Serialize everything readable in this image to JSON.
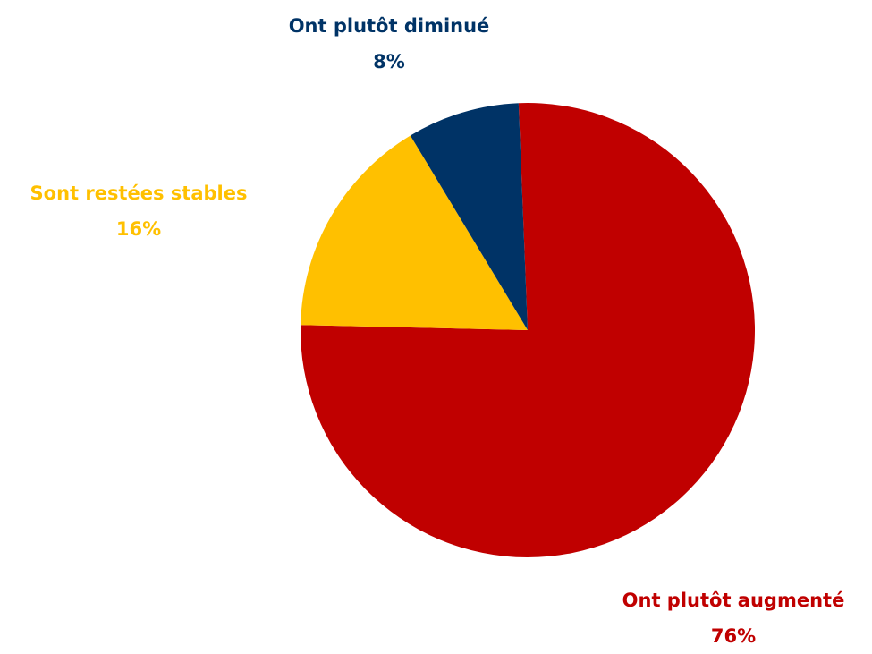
{
  "chart_data": {
    "type": "pie",
    "categories": [
      "Ont plutôt augmenté",
      "Sont restées stables",
      "Ont plutôt diminué"
    ],
    "values": [
      76,
      16,
      8
    ],
    "value_labels": [
      "76%",
      "16%",
      "8%"
    ],
    "colors": [
      "#c00000",
      "#ffc000",
      "#003366"
    ]
  }
}
